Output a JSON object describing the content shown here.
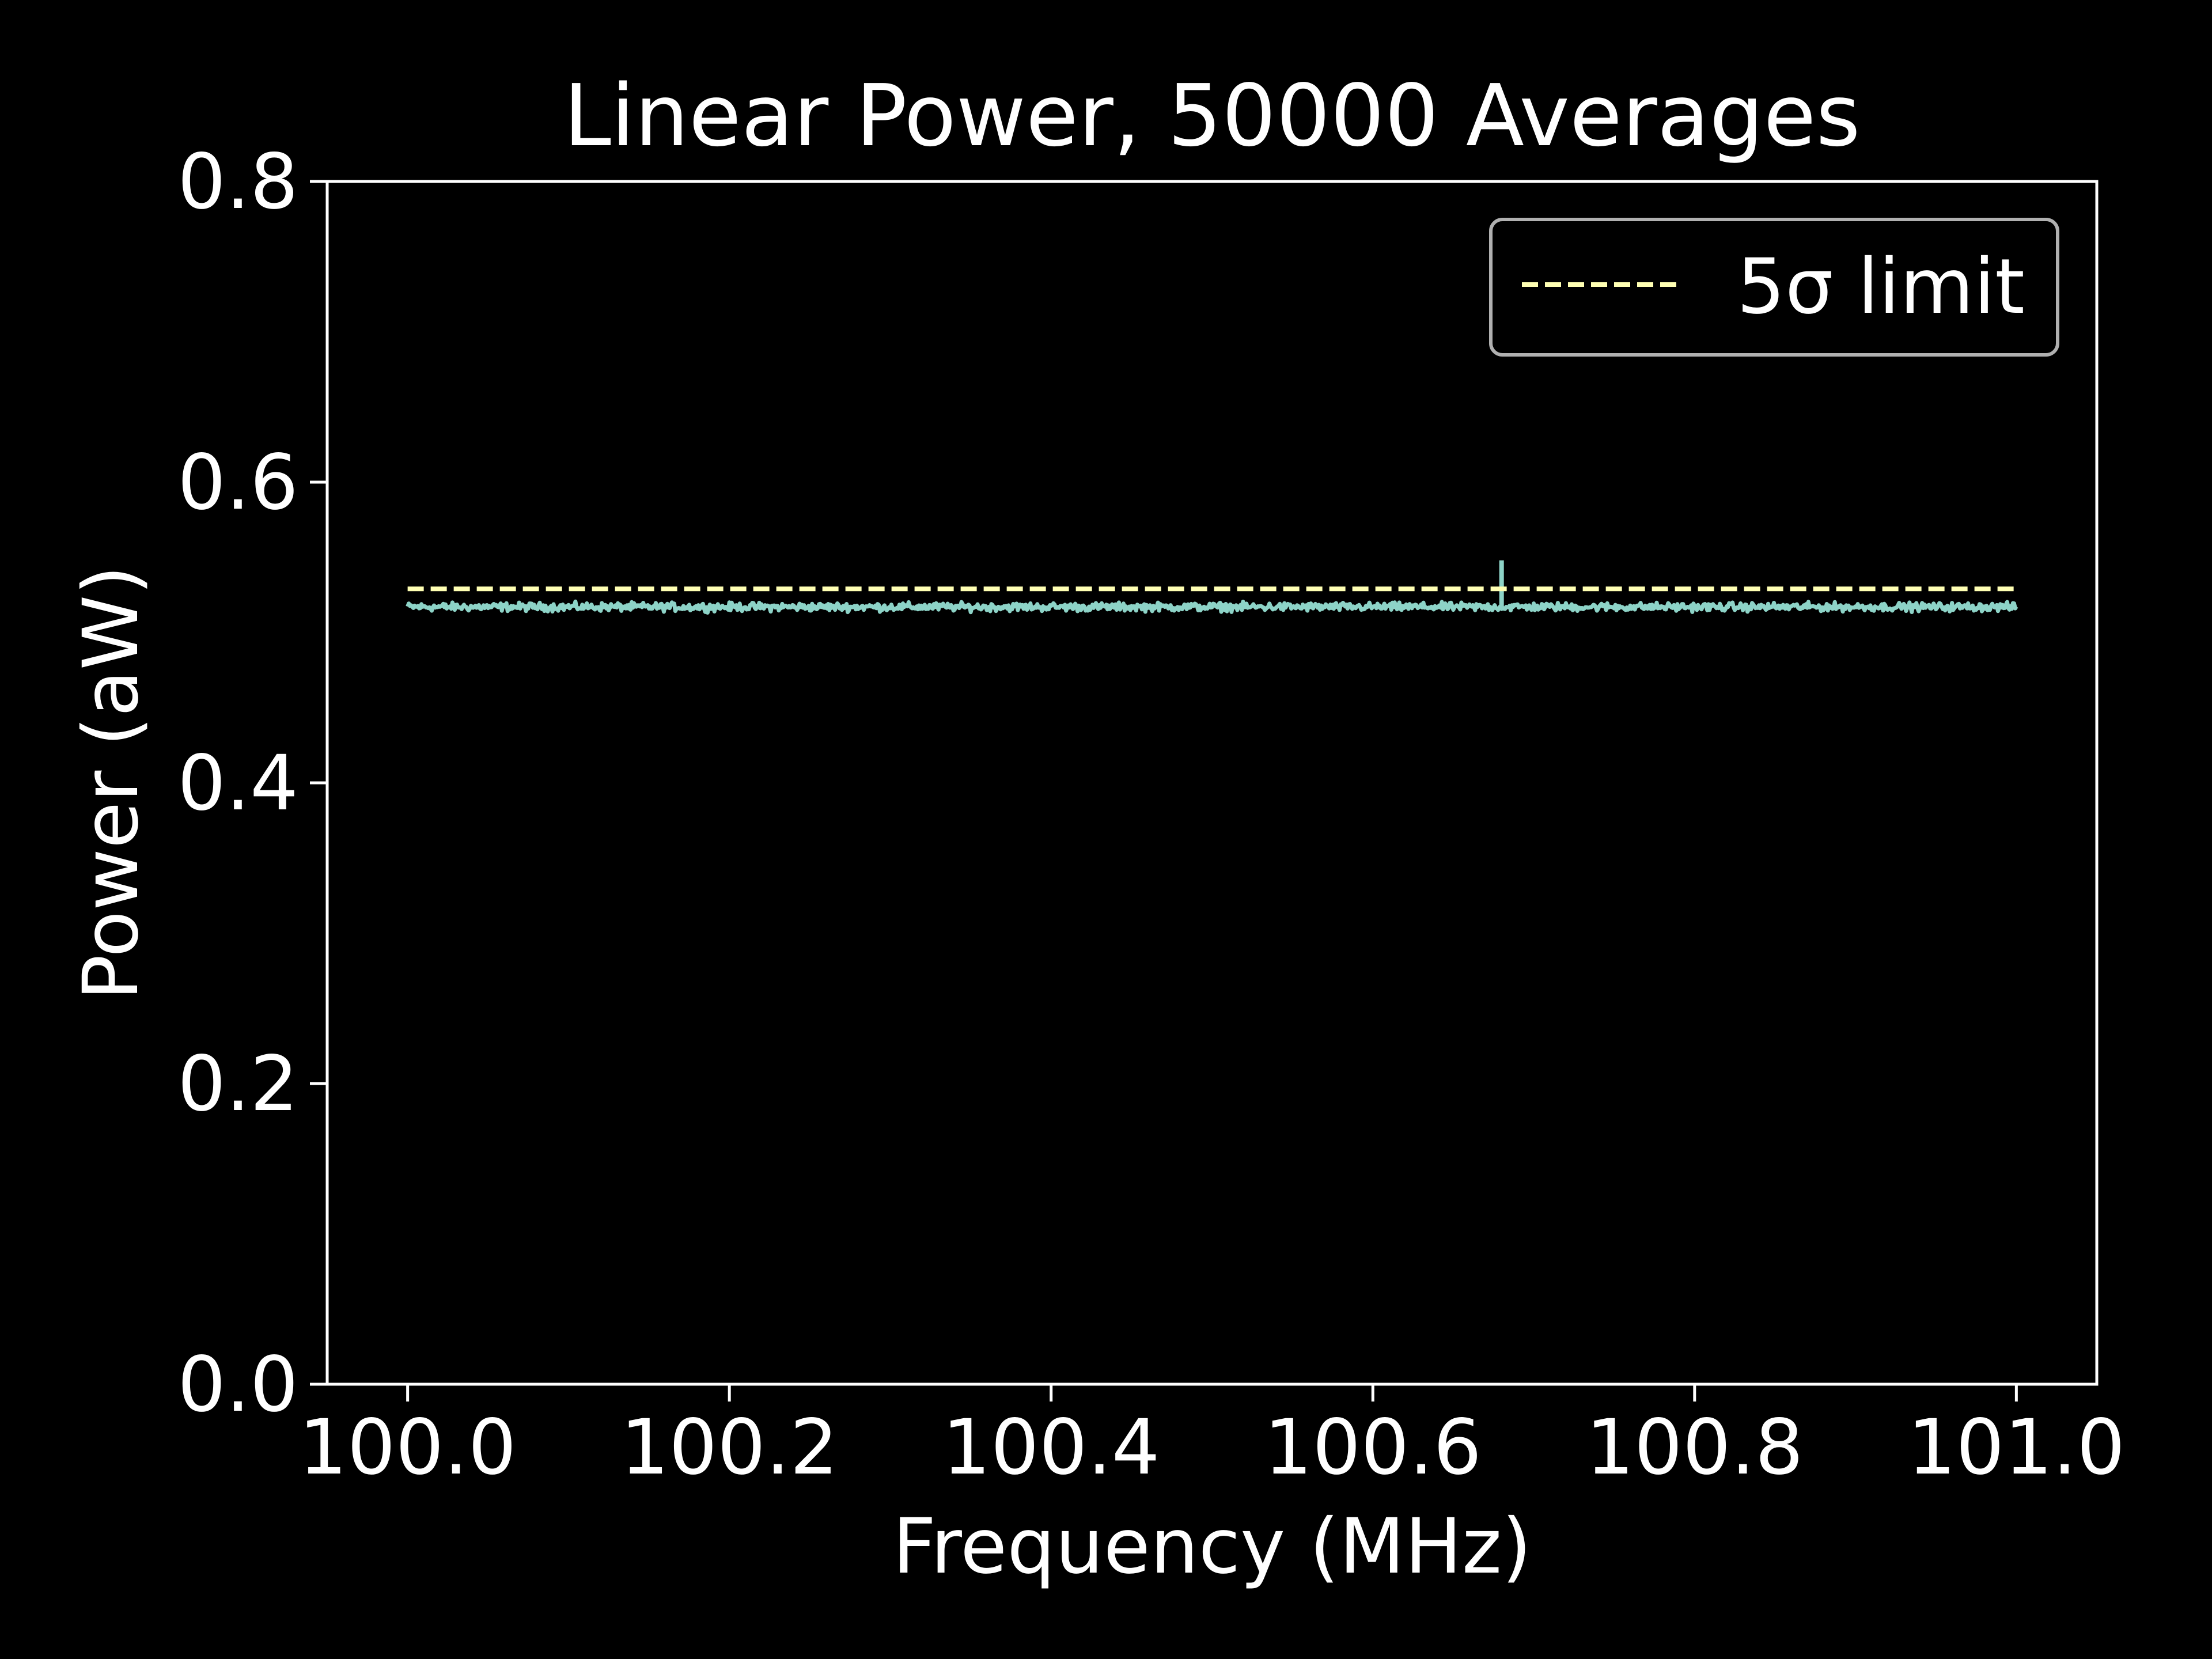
{
  "chart_data": {
    "type": "line",
    "title": "Linear Power, 50000 Averages",
    "xlabel": "Frequency (MHz)",
    "ylabel": "Power (aW)",
    "xlim": [
      99.95,
      101.05
    ],
    "ylim": [
      0.0,
      0.8
    ],
    "xticks": [
      100.0,
      100.2,
      100.4,
      100.6,
      100.8,
      101.0
    ],
    "xtick_labels": [
      "100.0",
      "100.2",
      "100.4",
      "100.6",
      "100.8",
      "101.0"
    ],
    "yticks": [
      0.0,
      0.2,
      0.4,
      0.6,
      0.8
    ],
    "ytick_labels": [
      "0.0",
      "0.2",
      "0.4",
      "0.6",
      "0.8"
    ],
    "grid": false,
    "legend": {
      "placement": "top-right",
      "entries": [
        "5σ limit"
      ]
    },
    "series": [
      {
        "kind": "spectrum",
        "color": "#8dd3c7",
        "x_start": 100.0,
        "x_end": 101.0,
        "baseline": 0.517,
        "noise_amplitude": 0.004,
        "peak": {
          "x": 100.68,
          "y": 0.548
        }
      },
      {
        "name": "5σ limit",
        "kind": "threshold",
        "color": "#ffffb3",
        "x": [
          100.0,
          101.0
        ],
        "y": [
          0.529,
          0.529
        ]
      }
    ]
  },
  "colors": {
    "background": "#000000",
    "axes": "#ffffff",
    "legend_frame": "#b0b0b0"
  }
}
